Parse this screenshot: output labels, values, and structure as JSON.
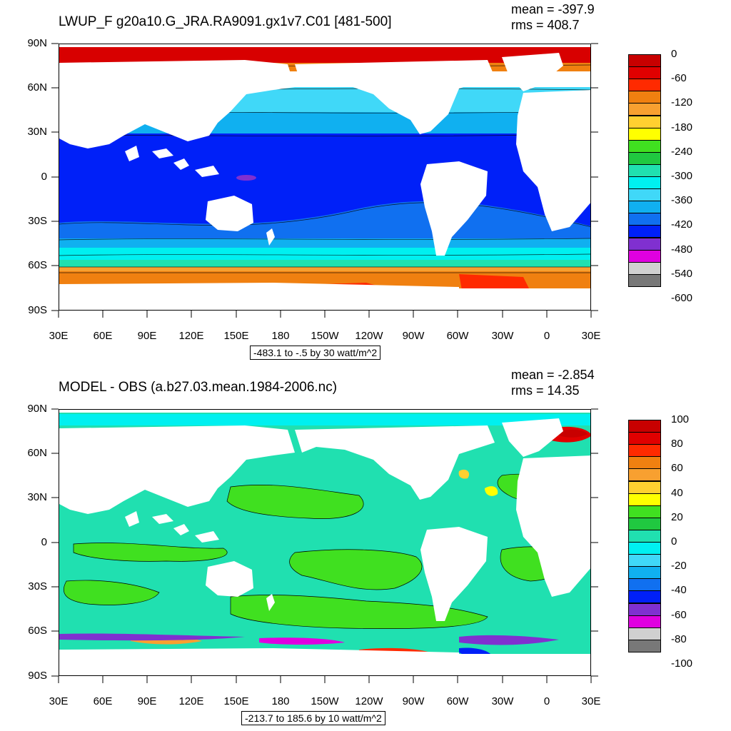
{
  "top_panel": {
    "title": "LWUP_F g20a10.G_JRA.RA9091.gx1v7.C01 [481-500]",
    "mean": "mean = -397.9",
    "rms": "rms = 408.7",
    "info": "-483.1 to -.5 by 30 watt/m^2",
    "colorbar": {
      "labels": [
        "0",
        "-60",
        "-120",
        "-180",
        "-240",
        "-300",
        "-360",
        "-420",
        "-480",
        "-540",
        "-600"
      ],
      "colors": [
        "#c80000",
        "#e00000",
        "#ff2a00",
        "#f08010",
        "#f8a030",
        "#ffd030",
        "#ffff00",
        "#40e020",
        "#20c840",
        "#20e0b0",
        "#00f0f0",
        "#40d8f8",
        "#10b0f0",
        "#1070f0",
        "#0020f8",
        "#8030d0",
        "#e000e0",
        "#d0d0d0",
        "#787878"
      ]
    }
  },
  "bottom_panel": {
    "title": "MODEL - OBS (a.b27.03.mean.1984-2006.nc)",
    "mean": "mean = -2.854",
    "rms": "rms = 14.35",
    "info": "-213.7 to 185.6 by 10 watt/m^2",
    "colorbar": {
      "labels": [
        "100",
        "80",
        "60",
        "40",
        "20",
        "0",
        "-20",
        "-40",
        "-60",
        "-80",
        "-100"
      ],
      "colors": [
        "#c80000",
        "#e00000",
        "#ff2a00",
        "#f08010",
        "#f8a030",
        "#ffd030",
        "#ffff00",
        "#40e020",
        "#20c840",
        "#20e0b0",
        "#00f0f0",
        "#40d8f8",
        "#10b0f0",
        "#1070f0",
        "#0020f8",
        "#8030d0",
        "#e000e0",
        "#d0d0d0",
        "#787878"
      ]
    }
  },
  "axes": {
    "lat_labels": [
      "90N",
      "60N",
      "30N",
      "0",
      "30S",
      "60S",
      "90S"
    ],
    "lon_labels": [
      "30E",
      "60E",
      "90E",
      "120E",
      "150E",
      "180",
      "150W",
      "120W",
      "90W",
      "60W",
      "30W",
      "0",
      "30E"
    ]
  },
  "colors": {
    "land": "#ffffff",
    "top_tropics": "#0020f8",
    "bottom_ocean": "#20e0b0",
    "bottom_positive": "#20c840"
  }
}
